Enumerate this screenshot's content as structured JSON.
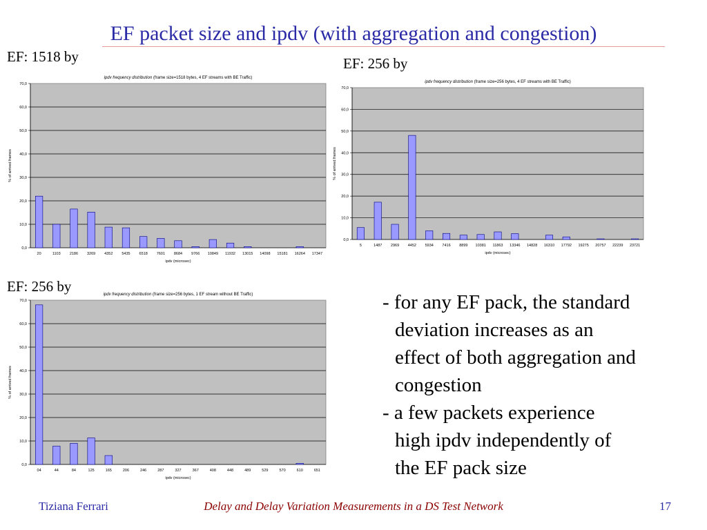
{
  "slide": {
    "title": "EF packet size and ipdv (with aggregation and congestion)",
    "labels": [
      "EF: 1518 by",
      "EF: 256 by",
      "EF: 256 by"
    ],
    "bullets": [
      {
        "first": "- for any EF pack, the standard",
        "rest": [
          "deviation increases as an",
          "effect of both aggregation and",
          "congestion"
        ]
      },
      {
        "first": "- a few packets experience",
        "rest": [
          "high ipdv independently of",
          "the EF pack size"
        ]
      }
    ],
    "footer": {
      "author": "Tiziana Ferrari",
      "center": "Delay and Delay Variation Measurements in a DS Test Network",
      "page": "17"
    }
  },
  "colors": {
    "title": "#2a2aa6",
    "footer_center": "#8b0000",
    "plot_bg": "#c0c0c0",
    "bar_fill": "#9999ff",
    "bar_stroke": "#000080"
  },
  "chart_data": [
    {
      "type": "bar",
      "title_italic": "ipdv frequency distribution",
      "title": "(frame size=1518 bytes, 4 EF streams with BE Traffic)",
      "xlabel": "ipdv (microsec)",
      "ylabel": "% of arrived frames",
      "ylim": [
        0,
        70
      ],
      "yticks": [
        "0,0",
        "10,0",
        "20,0",
        "30,0",
        "40,0",
        "50,0",
        "60,0",
        "70,0"
      ],
      "grid": true,
      "categories": [
        "20",
        "1103",
        "2186",
        "3269",
        "4352",
        "5435",
        "6518",
        "7601",
        "8684",
        "9766",
        "10849",
        "11932",
        "13015",
        "14098",
        "15181",
        "16264",
        "17347"
      ],
      "values": [
        22,
        10,
        16.5,
        15.2,
        8.8,
        8.5,
        4.8,
        4.0,
        3.0,
        0.5,
        3.5,
        2.0,
        0.5,
        0,
        0,
        0.5,
        0
      ]
    },
    {
      "type": "bar",
      "title_italic": "ipdv frequency distribution",
      "title": "(frame size=256 bytes, 4 EF streams with BE Traffic)",
      "xlabel": "ipdv (microsec)",
      "ylabel": "% of arrived frames",
      "ylim": [
        0,
        70
      ],
      "yticks": [
        "0,0",
        "10,0",
        "20,0",
        "30,0",
        "40,0",
        "50,0",
        "60,0",
        "70,0"
      ],
      "grid": true,
      "categories": [
        "5",
        "1487",
        "2969",
        "4452",
        "5934",
        "7416",
        "8899",
        "10381",
        "11863",
        "13346",
        "14828",
        "16310",
        "17792",
        "19275",
        "20757",
        "22239",
        "23721"
      ],
      "values": [
        5.5,
        17.2,
        7.0,
        48.0,
        4.0,
        2.8,
        2.0,
        2.3,
        3.5,
        2.7,
        0,
        2.0,
        1.2,
        0,
        0.3,
        0,
        0.3
      ]
    },
    {
      "type": "bar",
      "title_italic": "ipdv frequency distribution",
      "title": "(frame size=256 bytes, 1 EF stream without BE Traffic)",
      "xlabel": "ipdv (microsec)",
      "ylabel": "% of arrived frames",
      "ylim": [
        0,
        70
      ],
      "yticks": [
        "0,0",
        "10,0",
        "20,0",
        "30,0",
        "40,0",
        "50,0",
        "60,0",
        "70,0"
      ],
      "grid": true,
      "categories": [
        "04",
        "44",
        "84",
        "125",
        "165",
        "206",
        "246",
        "287",
        "327",
        "367",
        "408",
        "448",
        "489",
        "529",
        "570",
        "610",
        "651"
      ],
      "values": [
        68,
        7.8,
        9.0,
        11.3,
        3.8,
        0,
        0,
        0,
        0,
        0,
        0,
        0,
        0,
        0,
        0,
        0.5,
        0
      ]
    }
  ]
}
